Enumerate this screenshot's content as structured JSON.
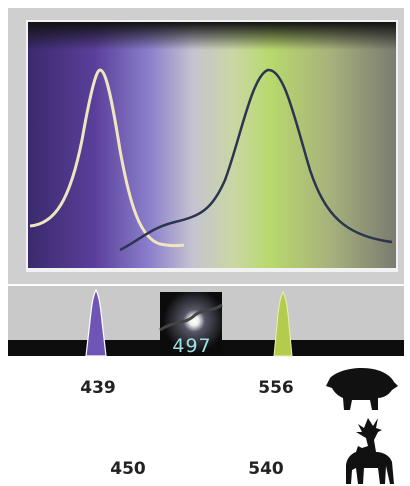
{
  "spectrum": {
    "moon_value": 497
  },
  "boar": {
    "peaks": [
      439,
      556
    ]
  },
  "deer": {
    "peaks": [
      450,
      540
    ]
  }
}
